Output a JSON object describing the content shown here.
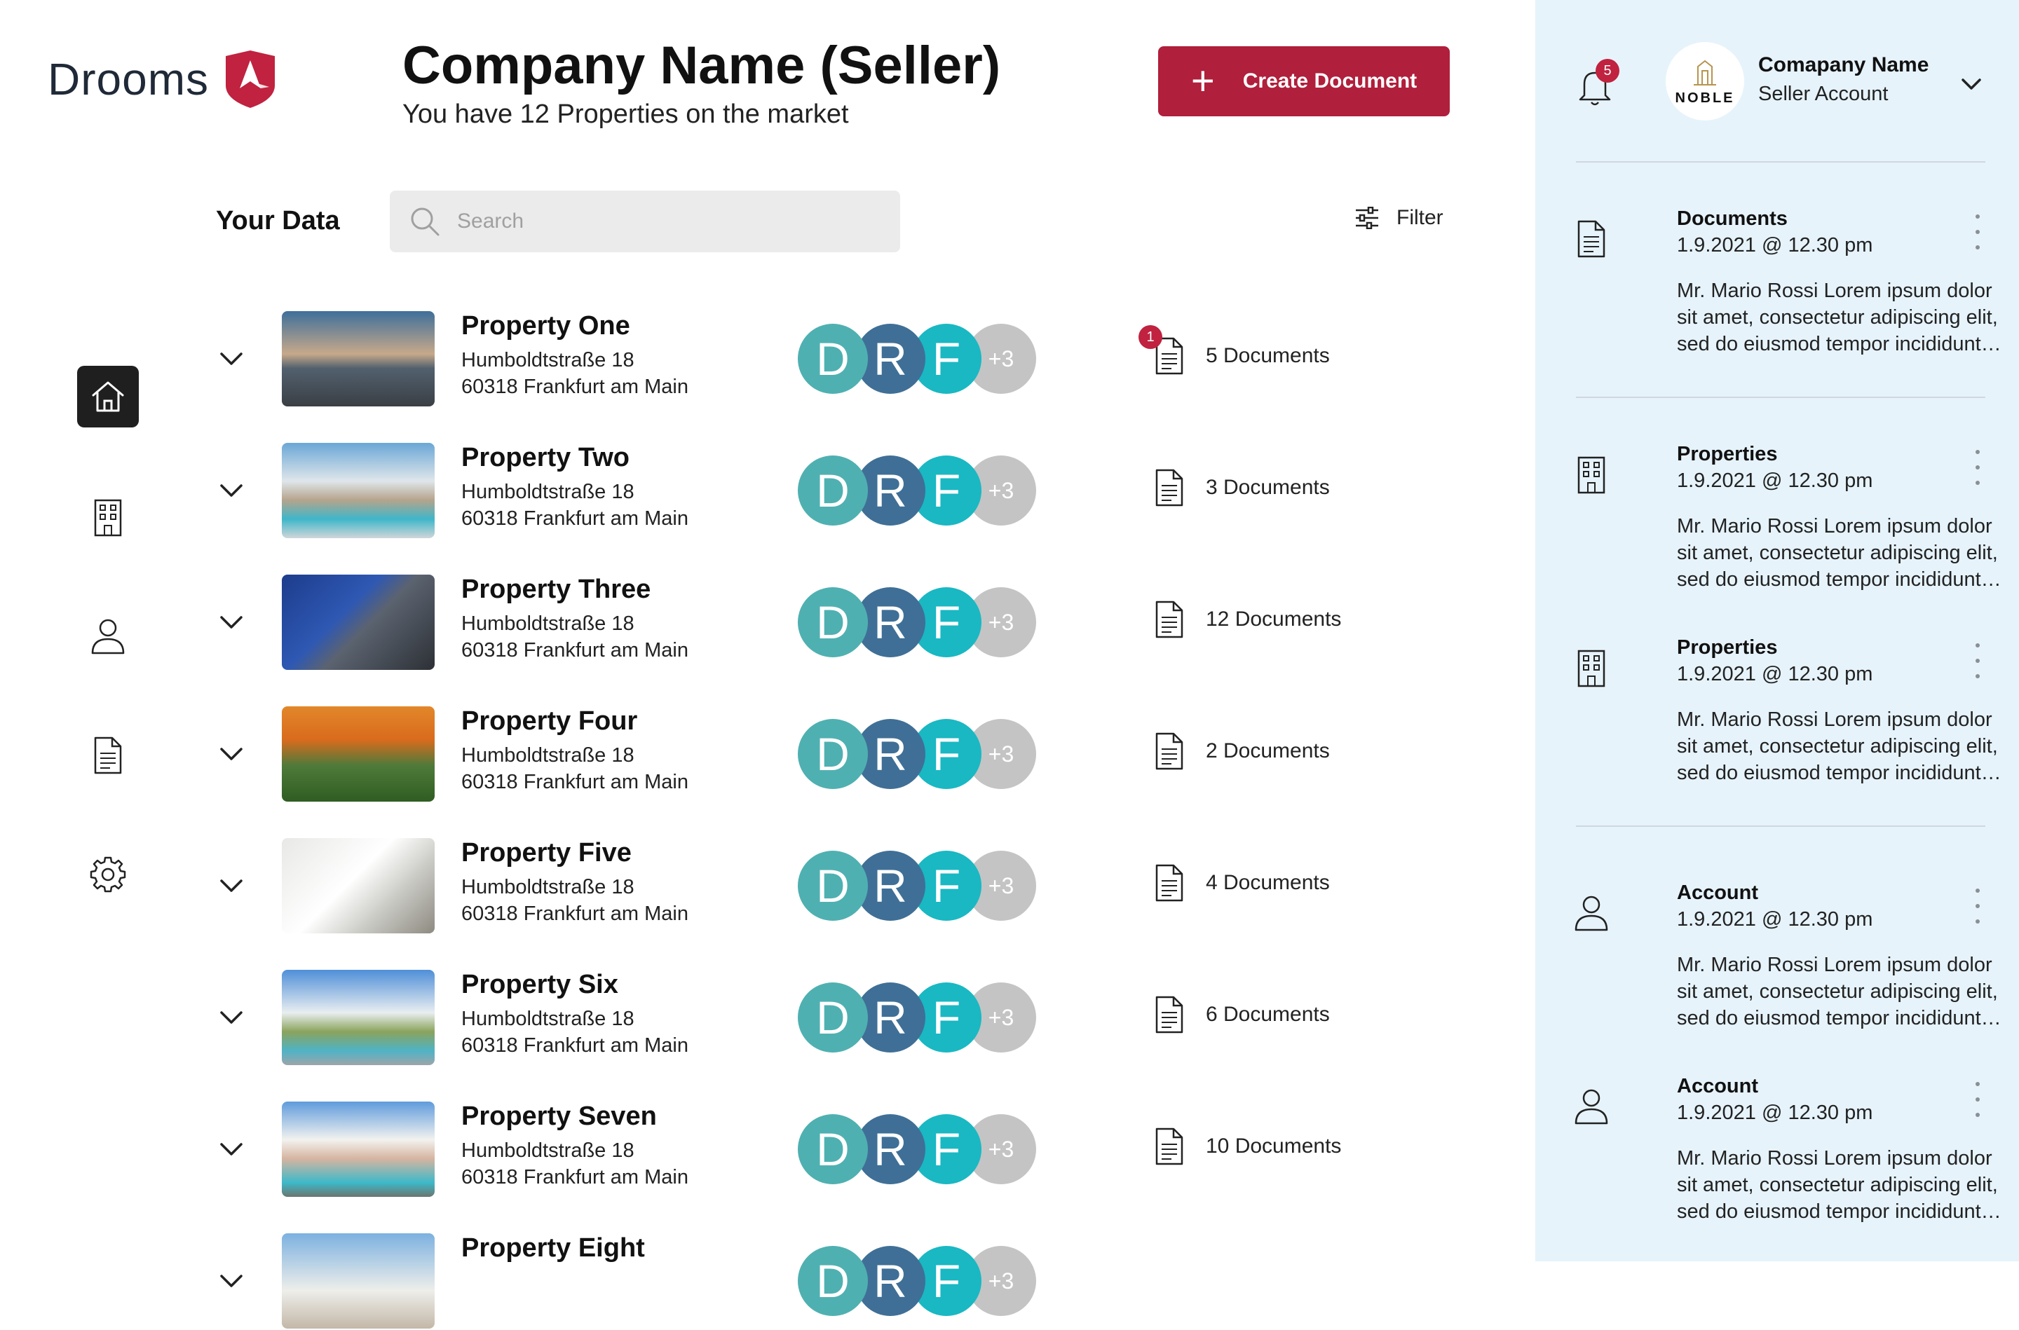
{
  "brand": {
    "name": "Drooms"
  },
  "header": {
    "title": "Company Name (Seller)",
    "subtitle": "You have 12 Properties on the market",
    "create_label": "Create Document"
  },
  "data_section": {
    "title": "Your Data",
    "search_placeholder": "Search",
    "filter_label": "Filter"
  },
  "nav": {
    "items": [
      {
        "name": "home",
        "active": true
      },
      {
        "name": "properties",
        "active": false
      },
      {
        "name": "account",
        "active": false
      },
      {
        "name": "documents",
        "active": false
      },
      {
        "name": "settings",
        "active": false
      }
    ]
  },
  "avatars": {
    "d": "D",
    "r": "R",
    "f": "F",
    "more": "+3",
    "colors": [
      "#4fb0b1",
      "#3f6f96",
      "#19b8c3",
      "#c4c4c4"
    ]
  },
  "properties": [
    {
      "name": "Property One",
      "street": "Humboldtstraße 18",
      "city": "60318 Frankfurt am Main",
      "documents": "5 Documents",
      "badge": "1"
    },
    {
      "name": "Property Two",
      "street": "Humboldtstraße 18",
      "city": "60318 Frankfurt am Main",
      "documents": "3 Documents",
      "badge": ""
    },
    {
      "name": "Property Three",
      "street": "Humboldtstraße 18",
      "city": "60318 Frankfurt am Main",
      "documents": "12 Documents",
      "badge": ""
    },
    {
      "name": "Property Four",
      "street": "Humboldtstraße 18",
      "city": "60318 Frankfurt am Main",
      "documents": "2 Documents",
      "badge": ""
    },
    {
      "name": "Property Five",
      "street": "Humboldtstraße 18",
      "city": "60318 Frankfurt am Main",
      "documents": "4 Documents",
      "badge": ""
    },
    {
      "name": "Property Six",
      "street": "Humboldtstraße 18",
      "city": "60318 Frankfurt am Main",
      "documents": "6 Documents",
      "badge": ""
    },
    {
      "name": "Property Seven",
      "street": "Humboldtstraße 18",
      "city": "60318 Frankfurt am Main",
      "documents": "10 Documents",
      "badge": ""
    },
    {
      "name": "Property Eight",
      "street": "",
      "city": "",
      "documents": "",
      "badge": ""
    }
  ],
  "account": {
    "name": "Comapany Name",
    "type": "Seller Account",
    "logo_text": "NOBLE",
    "notifications": "5"
  },
  "activity": [
    {
      "title": "Documents",
      "time": "1.9.2021 @ 12.30 pm",
      "icon": "document-icon",
      "text": "Mr. Mario Rossi Lorem ipsum dolor sit amet, consectetur adipiscing elit, sed do eiusmod tempor incididunt ut labore"
    },
    {
      "title": "Properties",
      "time": "1.9.2021 @ 12.30 pm",
      "icon": "building-icon",
      "text": "Mr. Mario Rossi Lorem ipsum dolor sit amet, consectetur adipiscing elit, sed do eiusmod tempor incididunt ut labore"
    },
    {
      "title": "Properties",
      "time": "1.9.2021 @ 12.30 pm",
      "icon": "building-icon",
      "text": "Mr. Mario Rossi Lorem ipsum dolor sit amet, consectetur adipiscing elit, sed do eiusmod tempor incididunt ut labore"
    },
    {
      "title": "Account",
      "time": "1.9.2021 @ 12.30 pm",
      "icon": "user-icon",
      "text": "Mr. Mario Rossi Lorem ipsum dolor sit amet, consectetur adipiscing elit, sed do eiusmod tempor incididunt ut labore"
    },
    {
      "title": "Account",
      "time": "1.9.2021 @ 12.30 pm",
      "icon": "user-icon",
      "text": "Mr. Mario Rossi Lorem ipsum dolor sit amet, consectetur adipiscing elit, sed do eiusmod tempor incididunt ut labore"
    }
  ],
  "colors": {
    "brand": "#b01f3b",
    "panel": "#e6f3fb",
    "badge": "#c0223f"
  }
}
